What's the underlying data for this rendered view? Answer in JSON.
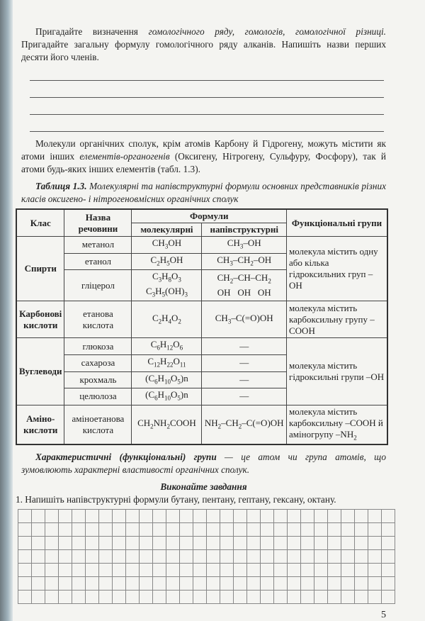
{
  "para1": {
    "text_a": "Пригадайте визначення ",
    "italic": "гомологічного ряду, гомологів, гомологічної різниці.",
    "text_b": " Пригадайте загальну формулу гомологічного ряду алканів. Напишіть назви перших десяти його членів."
  },
  "para2": {
    "text_a": "Молекули органічних сполук, крім атомів Карбону й Гідрогену, можуть містити як атоми інших ",
    "italic": "елементів-органогенів",
    "text_b": " (Оксигену, Нітрогену, Сульфуру, Фосфору), так й атоми будь-яких інших елементів (табл. 1.3)."
  },
  "caption": {
    "label": "Таблиця 1.3.",
    "text": " Молекулярні та напівструктурні формули основних представників різних класів оксигено- і нітрогеновмісних органічних сполук"
  },
  "table": {
    "headers": {
      "class": "Клас",
      "name": "Назва речовини",
      "formulas": "Формули",
      "molecular": "молекулярні",
      "semi": "напівструктурні",
      "groups": "Функціональні групи"
    },
    "alcohols": {
      "class": "Спирти",
      "group": "молекула містить одну або кілька гідроксильних груп –OH",
      "rows": [
        {
          "name": "метанол",
          "mol": "CH3OH",
          "semi": "CH3–OH"
        },
        {
          "name": "етанол",
          "mol": "C2H5OH",
          "semi": "CH3–CH2–OH"
        },
        {
          "name": "гліцерол",
          "mol": "C3H8O3",
          "mol2": "C3H5(OH)3",
          "semi": "CH2–CH–CH2",
          "semi2": "OH   OH   OH"
        }
      ]
    },
    "acids": {
      "class": "Карбонові кислоти",
      "name": "етанова кислота",
      "mol": "C2H4O2",
      "semi": "CH3–C(=O)OH",
      "group": "молекула містить карбоксильну групу –COOH"
    },
    "carbs": {
      "class": "Вуглеводи",
      "group": "молекула містить гідроксильні групи –OH",
      "rows": [
        {
          "name": "глюкоза",
          "mol": "C6H12O6",
          "semi": "—"
        },
        {
          "name": "сахароза",
          "mol": "C12H22O11",
          "semi": "—"
        },
        {
          "name": "крохмаль",
          "mol": "(C6H10O5)n",
          "semi": "—"
        },
        {
          "name": "целюлоза",
          "mol": "(C6H10O5)n",
          "semi": "—"
        }
      ]
    },
    "amino": {
      "class": "Аміно-кислоти",
      "name": "аміноетанова кислота",
      "mol": "CH2NH2COOH",
      "semi": "NH2–CH2–C(=O)OH",
      "group": "молекула містить карбоксильну –COOH й аміногрупу –NH2"
    }
  },
  "definition": {
    "bold": "Характеристичні (функціональні) групи",
    "text": " — це атом чи група атомів, що зумовлюють характерні властивості органічних сполук."
  },
  "tasks_title": "Виконайте завдання",
  "task1": "1. Напишіть напівструктурні формули бутану, пентану, гептану, гексану, октану.",
  "page_number": "5"
}
